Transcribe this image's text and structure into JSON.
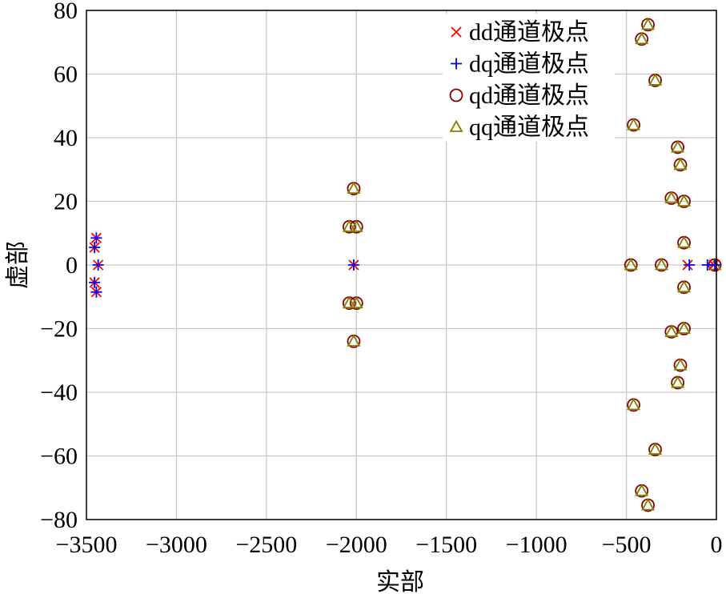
{
  "chart_data": {
    "type": "scatter",
    "xlabel": "实部",
    "ylabel": "虚部",
    "xlim": [
      -3500,
      0
    ],
    "ylim": [
      -80,
      80
    ],
    "xticks": [
      -3500,
      -3000,
      -2500,
      -2000,
      -1500,
      -1000,
      -500,
      0
    ],
    "yticks": [
      -80,
      -60,
      -40,
      -20,
      0,
      20,
      40,
      60,
      80
    ],
    "xtick_labels": [
      "−3500",
      "−3000",
      "−2500",
      "−2000",
      "−1500",
      "−1000",
      "−500",
      "0"
    ],
    "ytick_labels": [
      "−80",
      "−60",
      "−40",
      "−20",
      "0",
      "20",
      "40",
      "60",
      "80"
    ],
    "grid": true,
    "legend_position": "top-right",
    "series": [
      {
        "name": "dd通道极点",
        "marker": "x",
        "color": "#ff0000",
        "points": [
          [
            -3445,
            8.5
          ],
          [
            -3455,
            5.5
          ],
          [
            -3435,
            0
          ],
          [
            -3455,
            -5.5
          ],
          [
            -3445,
            -8.5
          ],
          [
            -2015,
            0
          ],
          [
            -160,
            0
          ],
          [
            -15,
            0
          ]
        ]
      },
      {
        "name": "dq通道极点",
        "marker": "+",
        "color": "#0000ff",
        "points": [
          [
            -3445,
            8.5
          ],
          [
            -3455,
            5.5
          ],
          [
            -3435,
            0
          ],
          [
            -3455,
            -5.5
          ],
          [
            -3445,
            -8.5
          ],
          [
            -2015,
            0
          ],
          [
            -150,
            0
          ],
          [
            -50,
            0
          ],
          [
            -5,
            0
          ]
        ]
      },
      {
        "name": "qd通道极点",
        "marker": "o",
        "color": "#8b0000",
        "points": [
          [
            -2015,
            24
          ],
          [
            -2040,
            12
          ],
          [
            -2000,
            12
          ],
          [
            -2040,
            -12
          ],
          [
            -2000,
            -12
          ],
          [
            -2015,
            -24
          ],
          [
            -380,
            75.5
          ],
          [
            -415,
            71
          ],
          [
            -340,
            58
          ],
          [
            -460,
            44
          ],
          [
            -215,
            37
          ],
          [
            -200,
            31.5
          ],
          [
            -250,
            21
          ],
          [
            -180,
            20
          ],
          [
            -180,
            7
          ],
          [
            -475,
            0
          ],
          [
            -305,
            0
          ],
          [
            -5,
            0
          ],
          [
            -180,
            -7
          ],
          [
            -180,
            -20
          ],
          [
            -250,
            -21
          ],
          [
            -200,
            -31.5
          ],
          [
            -215,
            -37
          ],
          [
            -460,
            -44
          ],
          [
            -340,
            -58
          ],
          [
            -415,
            -71
          ],
          [
            -380,
            -75.5
          ]
        ]
      },
      {
        "name": "qq通道极点",
        "marker": "triangle",
        "color": "#808000",
        "points": [
          [
            -2015,
            24
          ],
          [
            -2040,
            12
          ],
          [
            -2000,
            12
          ],
          [
            -2040,
            -12
          ],
          [
            -2000,
            -12
          ],
          [
            -2015,
            -24
          ],
          [
            -380,
            75.5
          ],
          [
            -415,
            71
          ],
          [
            -340,
            58
          ],
          [
            -460,
            44
          ],
          [
            -215,
            37
          ],
          [
            -200,
            31.5
          ],
          [
            -250,
            21
          ],
          [
            -180,
            20
          ],
          [
            -180,
            7
          ],
          [
            -475,
            0
          ],
          [
            -305,
            0
          ],
          [
            -5,
            0
          ],
          [
            -180,
            -7
          ],
          [
            -180,
            -20
          ],
          [
            -250,
            -21
          ],
          [
            -200,
            -31.5
          ],
          [
            -215,
            -37
          ],
          [
            -460,
            -44
          ],
          [
            -340,
            -58
          ],
          [
            -415,
            -71
          ],
          [
            -380,
            -75.5
          ]
        ]
      }
    ]
  }
}
